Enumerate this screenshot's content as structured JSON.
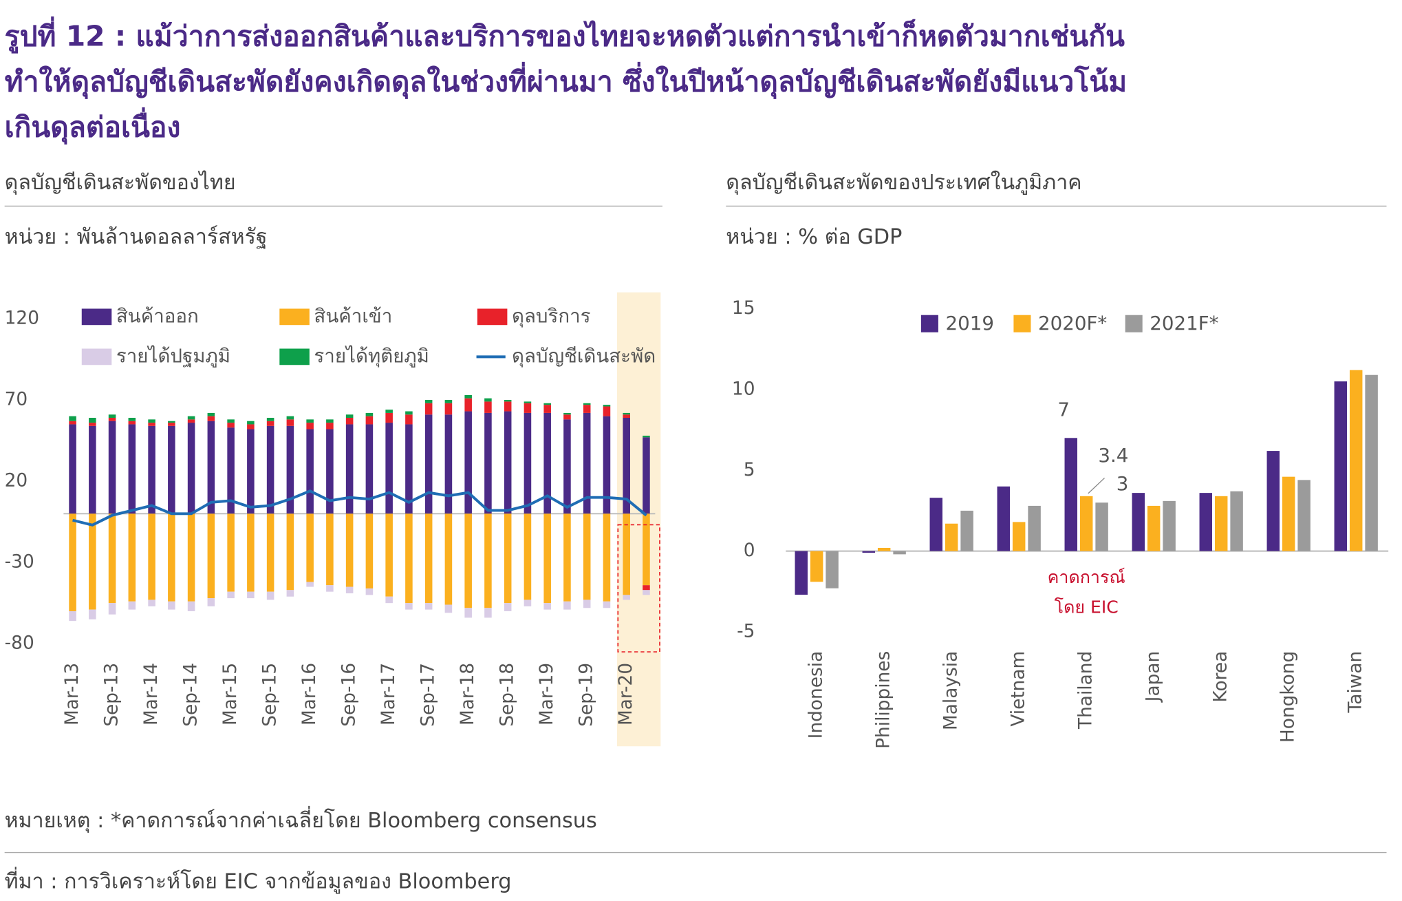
{
  "title": [
    "รูปที่ 12 : แม้ว่าการส่งออกสินค้าและบริการของไทยจะหดตัวแต่การนำเข้าก็หดตัวมากเช่นกัน",
    "ทำให้ดุลบัญชีเดินสะพัดยังคงเกิดดุลในช่วงที่ผ่านมา ซึ่งในปีหน้าดุลบัญชีเดินสะพัดยังมีแนวโน้ม",
    "เกินดุลต่อเนื่อง"
  ],
  "note": "หมายเหตุ : *คาดการณ์จากค่าเฉลี่ยโดย Bloomberg consensus",
  "source": "ที่มา : การวิเคราะห์โดย EIC จากข้อมูลของ Bloomberg",
  "chart_data": [
    {
      "type": "bar",
      "stacked": true,
      "title": "ดุลบัญชีเดินสะพัดของไทย",
      "unit": "หน่วย : พันล้านดอลลาร์สหรัฐ",
      "categories": [
        "Mar-13",
        null,
        "Sep-13",
        null,
        "Mar-14",
        null,
        "Sep-14",
        null,
        "Mar-15",
        null,
        "Sep-15",
        null,
        "Mar-16",
        null,
        "Sep-16",
        null,
        "Mar-17",
        null,
        "Sep-17",
        null,
        "Mar-18",
        null,
        "Sep-18",
        null,
        "Mar-19",
        null,
        "Sep-19",
        null,
        "Mar-20",
        null
      ],
      "ylim": [
        -80,
        120
      ],
      "yticks": [
        120,
        70,
        20,
        -30,
        -80
      ],
      "series": [
        {
          "name": "สินค้าออก",
          "color": "#4b2a87",
          "values": [
            55,
            54,
            57,
            55,
            54,
            54,
            56,
            57,
            53,
            52,
            54,
            54,
            52,
            52,
            55,
            55,
            56,
            55,
            61,
            61,
            63,
            62,
            63,
            62,
            62,
            58,
            62,
            60,
            59,
            47
          ]
        },
        {
          "name": "สินค้าเข้า",
          "color": "#fbb01f",
          "values": [
            -60,
            -59,
            -55,
            -54,
            -53,
            -54,
            -54,
            -52,
            -48,
            -48,
            -48,
            -47,
            -42,
            -44,
            -45,
            -46,
            -51,
            -55,
            -55,
            -56,
            -58,
            -58,
            -55,
            -53,
            -55,
            -54,
            -53,
            -54,
            -50,
            -44
          ]
        },
        {
          "name": "ดุลบริการ",
          "color": "#e8222a",
          "values": [
            2,
            2,
            2,
            2,
            2,
            2,
            2,
            3,
            3,
            3,
            3,
            4,
            4,
            4,
            4,
            5,
            6,
            6,
            7,
            7,
            8,
            7,
            6,
            6,
            5,
            3,
            5,
            6,
            2,
            -3
          ]
        },
        {
          "name": "รายได้ปฐมภูมิ",
          "color": "#d9cce6",
          "values": [
            -6,
            -6,
            -7,
            -5,
            -4,
            -5,
            -6,
            -5,
            -4,
            -4,
            -5,
            -4,
            -3,
            -4,
            -4,
            -4,
            -4,
            -4,
            -4,
            -5,
            -6,
            -6,
            -5,
            -4,
            -4,
            -5,
            -5,
            -4,
            -3,
            -3
          ]
        },
        {
          "name": "รายได้ทุติยภูมิ",
          "color": "#0ea04b",
          "values": [
            3,
            3,
            2,
            2,
            2,
            1,
            2,
            2,
            2,
            2,
            2,
            2,
            2,
            2,
            2,
            2,
            2,
            2,
            2,
            2,
            2,
            2,
            1,
            1,
            1,
            1,
            1,
            1,
            1,
            1
          ]
        },
        {
          "name": "ดุลบัญชีเดินสะพัด",
          "color": "#1f6db4",
          "type": "line",
          "values": [
            -4,
            -7,
            -1,
            2,
            5,
            0,
            0,
            7,
            8,
            4,
            5,
            9,
            14,
            8,
            10,
            9,
            13,
            7,
            13,
            11,
            13,
            2,
            2,
            5,
            11,
            4,
            10,
            10,
            9,
            -1
          ]
        }
      ]
    },
    {
      "type": "bar",
      "title": "ดุลบัญชีเดินสะพัดของประเทศในภูมิภาค",
      "unit": "หน่วย : % ต่อ GDP",
      "categories": [
        "Indonesia",
        "Philippines",
        "Malaysia",
        "Vietnam",
        "Thailand",
        "Japan",
        "Korea",
        "Hongkong",
        "Taiwan"
      ],
      "ylim": [
        -5,
        15
      ],
      "yticks": [
        15,
        10,
        5,
        0,
        -5
      ],
      "data_labels_for": "Thailand",
      "annotation": [
        "คาดการณ์",
        "โดย EIC"
      ],
      "series": [
        {
          "name": "2019",
          "color": "#4b2a87",
          "values": [
            -2.7,
            -0.1,
            3.3,
            4.0,
            7,
            3.6,
            3.6,
            6.2,
            10.5
          ]
        },
        {
          "name": "2020F*",
          "color": "#fbb01f",
          "values": [
            -1.9,
            0.2,
            1.7,
            1.8,
            3.4,
            2.8,
            3.4,
            4.6,
            11.2
          ]
        },
        {
          "name": "2021F*",
          "color": "#9b9b9b",
          "values": [
            -2.3,
            -0.2,
            2.5,
            2.8,
            3,
            3.1,
            3.7,
            4.4,
            10.9
          ]
        }
      ]
    }
  ]
}
